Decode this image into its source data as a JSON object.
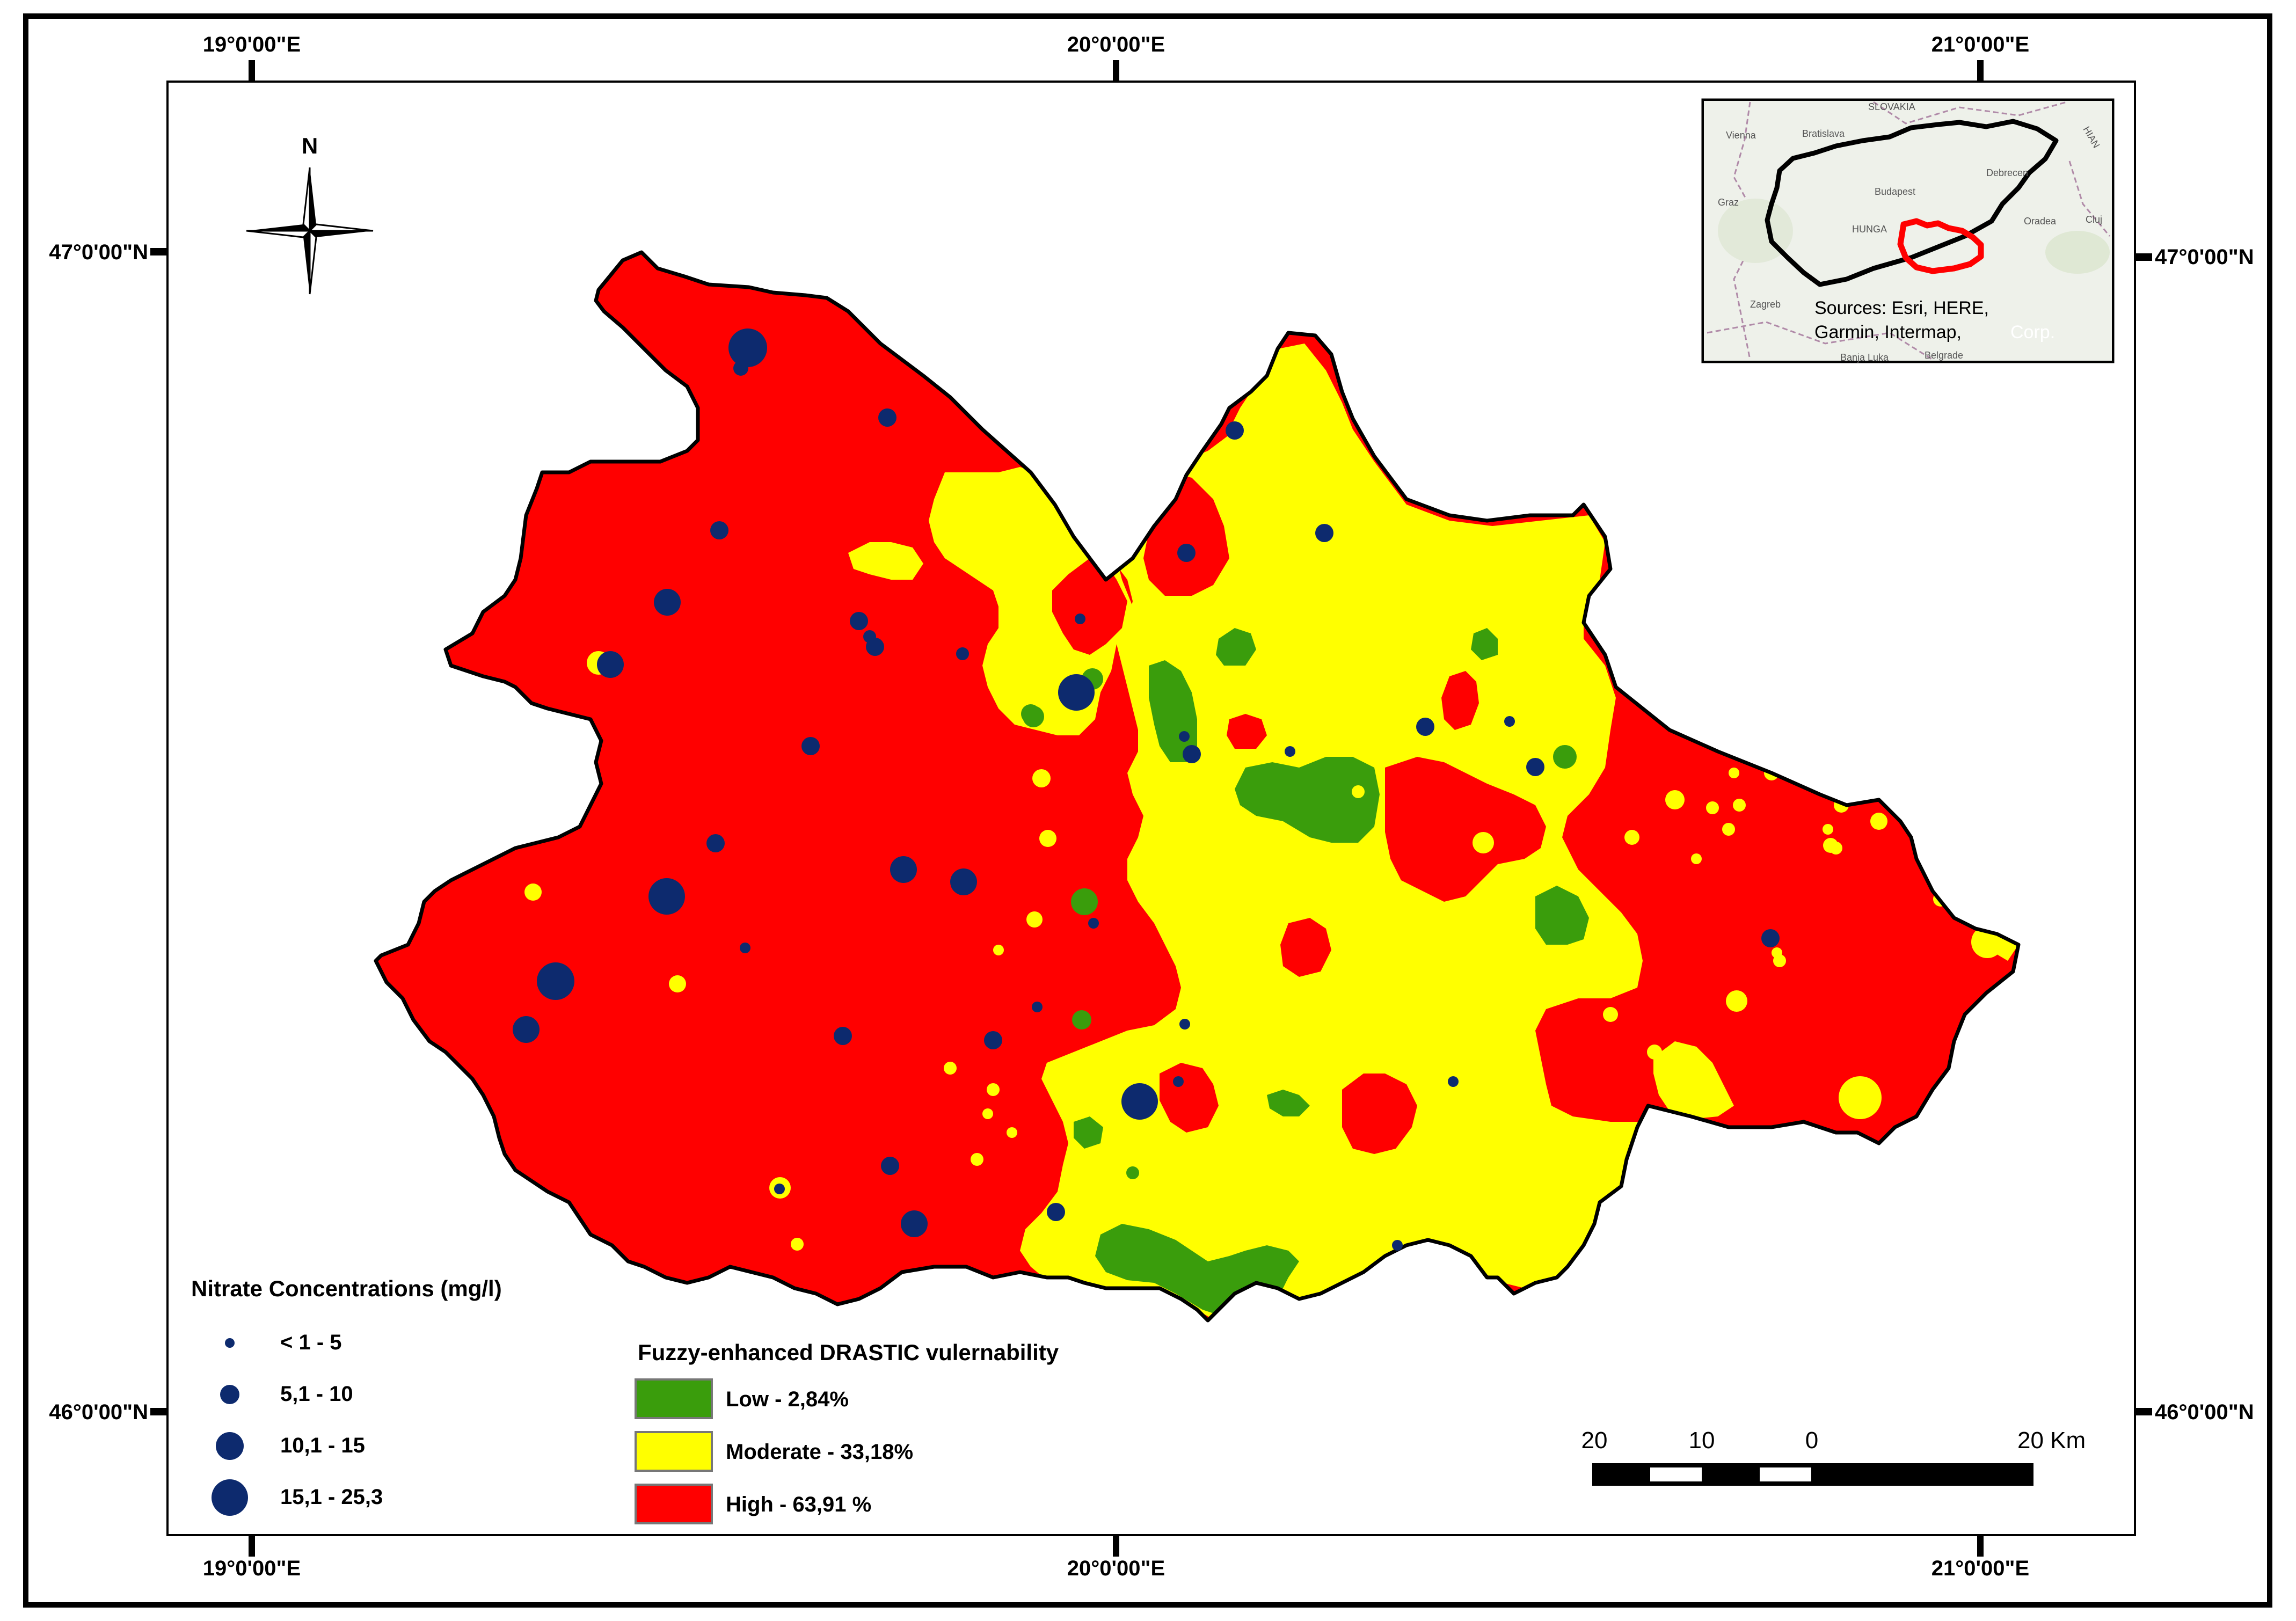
{
  "colors": {
    "high": "#ff0000",
    "moderate": "#ffff00",
    "low": "#3a9d0c",
    "points": "#0d2a6e",
    "outline": "#000000"
  },
  "graticule": {
    "top_lon": [
      "19°0'00\"E",
      "20°0'00\"E",
      "21°0'00\"E"
    ],
    "bottom_lon": [
      "19°0'00\"E",
      "20°0'00\"E",
      "21°0'00\"E"
    ],
    "left_lat": [
      "47°0'00\"N",
      "46°0'00\"N"
    ],
    "right_lat": [
      "47°0'00\"N",
      "46°0'00\"N"
    ]
  },
  "north_arrow": {
    "label": "N",
    "icon": "north-arrow-icon"
  },
  "inset": {
    "places": [
      "SLOVAKIA",
      "Vienna",
      "Bratislava",
      "Budapest",
      "Debrecen",
      "Graz",
      "HUNGA",
      "Oradea",
      "Cluj",
      "Zagreb",
      "Banja Luka",
      "Belgrade",
      "HIAN"
    ],
    "sources_line1": "Sources: Esri, HERE,",
    "sources_line2": "Garmin, Intermap,",
    "sources_tail": "Corp."
  },
  "nitrate_legend": {
    "title": "Nitrate Concentrations (mg/l)",
    "classes": [
      {
        "label": "< 1 - 5"
      },
      {
        "label": "5,1 - 10"
      },
      {
        "label": "10,1 - 15"
      },
      {
        "label": "15,1 - 25,3"
      }
    ]
  },
  "vulnerability_legend": {
    "title": "Fuzzy-enhanced DRASTIC vulernability",
    "classes": [
      {
        "label": "Low - 2,84%",
        "color": "#3a9d0c"
      },
      {
        "label": "Moderate - 33,18%",
        "color": "#ffff00"
      },
      {
        "label": "High - 63,91 %",
        "color": "#ff0000"
      }
    ]
  },
  "scale_bar": {
    "labels": [
      "20",
      "10",
      "0",
      "20 Km"
    ]
  }
}
